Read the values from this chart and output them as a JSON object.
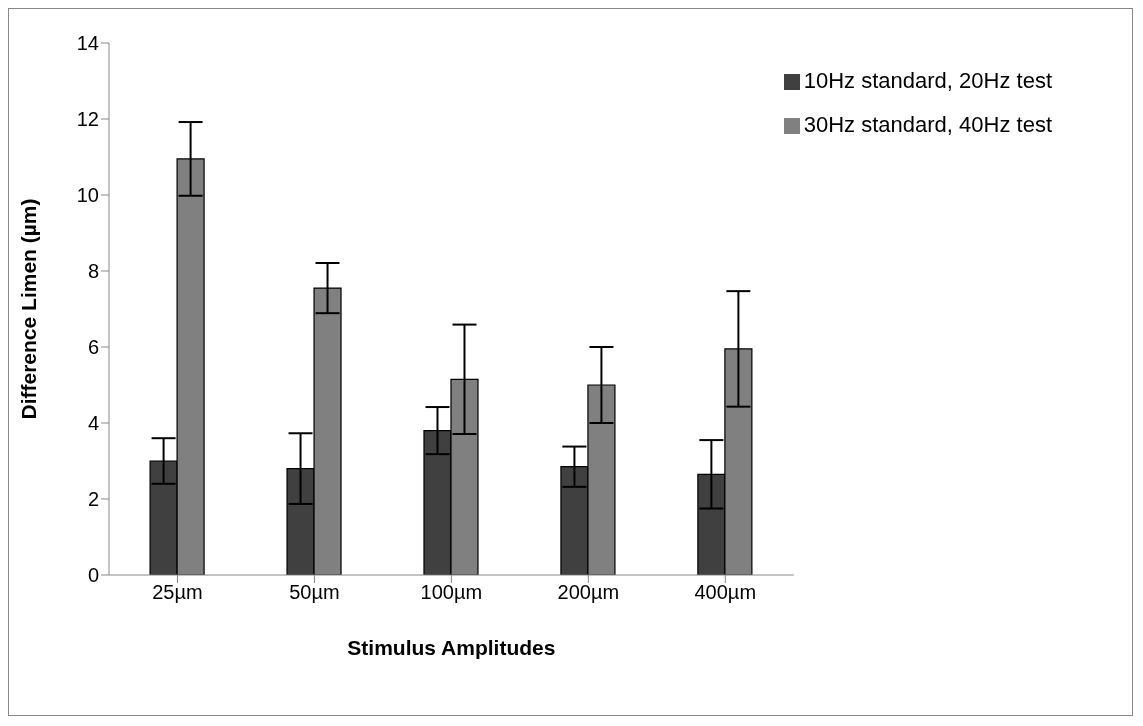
{
  "chart_data": {
    "type": "bar",
    "xlabel": "Stimulus Amplitudes",
    "ylabel": "Difference Limen (µm)",
    "categories": [
      "25µm",
      "50µm",
      "100µm",
      "200µm",
      "400µm"
    ],
    "series": [
      {
        "name": "10Hz standard, 20Hz test",
        "color": "#404040",
        "values": [
          3.0,
          2.8,
          3.8,
          2.85,
          2.65
        ],
        "errors": [
          0.6,
          0.93,
          0.62,
          0.53,
          0.9
        ]
      },
      {
        "name": "30Hz standard, 40Hz test",
        "color": "#808080",
        "values": [
          10.95,
          7.55,
          5.15,
          5.0,
          5.95
        ],
        "errors": [
          0.97,
          0.66,
          1.44,
          1.0,
          1.52
        ]
      }
    ],
    "ylim": [
      0,
      14
    ],
    "yticks": [
      0,
      2,
      4,
      6,
      8,
      10,
      12,
      14
    ],
    "grid": false,
    "legend": "top right"
  }
}
